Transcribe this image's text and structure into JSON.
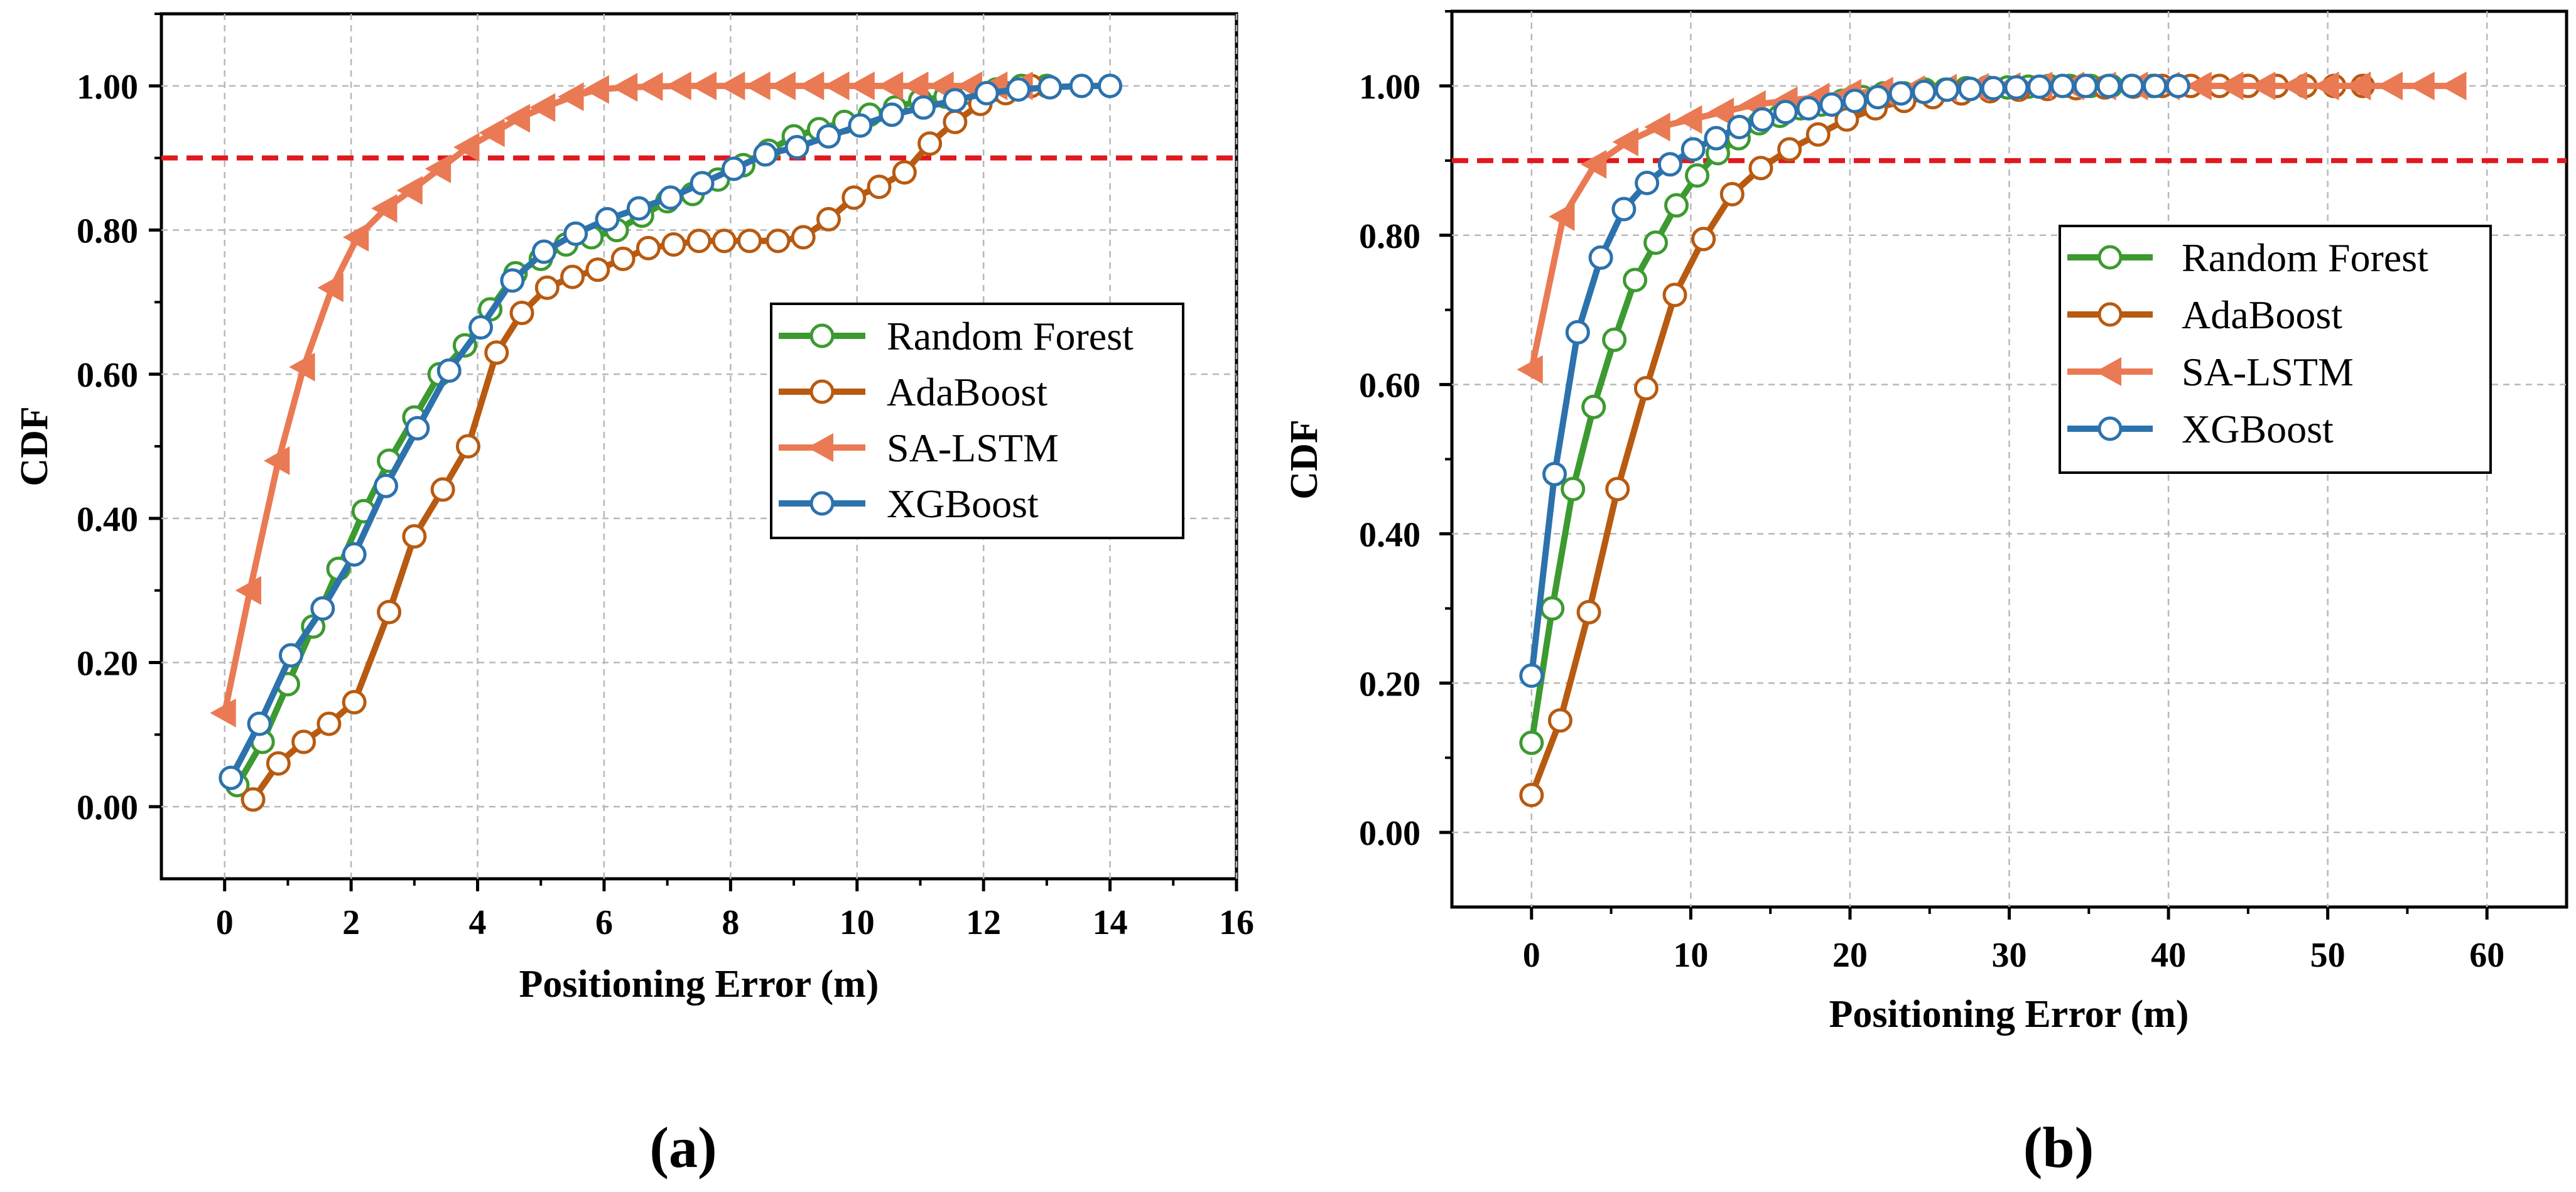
{
  "figure": {
    "panel_labels": [
      "(a)",
      "(b)"
    ]
  },
  "chart_data": [
    {
      "type": "line",
      "panel": "(a)",
      "title": "",
      "xlabel": "Positioning Error (m)",
      "ylabel": "CDF",
      "xlim": [
        -1,
        16
      ],
      "ylim": [
        -0.1,
        1.1
      ],
      "xticks": [
        0,
        2,
        4,
        6,
        8,
        10,
        12,
        14,
        16
      ],
      "yticks": [
        0.0,
        0.2,
        0.4,
        0.6,
        0.8,
        1.0
      ],
      "ytick_labels": [
        "0.00",
        "0.20",
        "0.40",
        "0.60",
        "0.80",
        "1.00"
      ],
      "grid": true,
      "legend_position": "center-right",
      "reference_line": {
        "y": 0.9,
        "color": "#e0191f",
        "style": "dashed"
      },
      "series": [
        {
          "name": "Random Forest",
          "color": "#3c9a30",
          "marker": "circle",
          "x": [
            0.2,
            0.6,
            1.0,
            1.4,
            1.8,
            2.2,
            2.6,
            3.0,
            3.4,
            3.8,
            4.2,
            4.6,
            5.0,
            5.4,
            5.8,
            6.2,
            6.6,
            7.0,
            7.4,
            7.8,
            8.2,
            8.6,
            9.0,
            9.4,
            9.8,
            10.2,
            10.6,
            11.0,
            11.4,
            11.8,
            12.2,
            12.6,
            13.0
          ],
          "y": [
            0.03,
            0.09,
            0.17,
            0.25,
            0.33,
            0.41,
            0.48,
            0.54,
            0.6,
            0.64,
            0.69,
            0.74,
            0.76,
            0.78,
            0.79,
            0.8,
            0.82,
            0.84,
            0.85,
            0.87,
            0.89,
            0.91,
            0.93,
            0.94,
            0.95,
            0.96,
            0.97,
            0.98,
            0.985,
            0.99,
            0.995,
            1.0,
            1.0
          ]
        },
        {
          "name": "AdaBoost",
          "color": "#b85a10",
          "marker": "circle",
          "x": [
            0.45,
            0.85,
            1.25,
            1.65,
            2.05,
            2.6,
            3.0,
            3.45,
            3.85,
            4.3,
            4.7,
            5.1,
            5.5,
            5.9,
            6.3,
            6.7,
            7.1,
            7.5,
            7.9,
            8.3,
            8.75,
            9.15,
            9.55,
            9.95,
            10.35,
            10.75,
            11.15,
            11.55,
            11.95,
            12.35,
            12.75
          ],
          "y": [
            0.01,
            0.06,
            0.09,
            0.115,
            0.145,
            0.27,
            0.375,
            0.44,
            0.5,
            0.63,
            0.685,
            0.72,
            0.735,
            0.745,
            0.76,
            0.775,
            0.78,
            0.785,
            0.785,
            0.785,
            0.785,
            0.79,
            0.815,
            0.845,
            0.86,
            0.88,
            0.92,
            0.95,
            0.975,
            0.99,
            1.0
          ]
        },
        {
          "name": "SA-LSTM",
          "color": "#ea7a53",
          "marker": "triangle-left",
          "x": [
            0.0,
            0.4,
            0.85,
            1.25,
            1.7,
            2.1,
            2.55,
            2.95,
            3.4,
            3.85,
            4.25,
            4.65,
            5.05,
            5.5,
            5.9,
            6.35,
            6.75,
            7.2,
            7.6,
            8.05,
            8.45,
            8.85,
            9.3,
            9.7,
            10.1,
            10.55,
            10.95,
            11.35,
            11.8,
            12.2,
            12.6
          ],
          "y": [
            0.13,
            0.3,
            0.48,
            0.61,
            0.72,
            0.79,
            0.83,
            0.855,
            0.885,
            0.915,
            0.935,
            0.955,
            0.97,
            0.985,
            0.995,
            0.998,
            0.999,
            1.0,
            1.0,
            1.0,
            1.0,
            1.0,
            1.0,
            1.0,
            1.0,
            1.0,
            1.0,
            1.0,
            1.0,
            1.0,
            1.0
          ]
        },
        {
          "name": "XGBoost",
          "color": "#2c72ad",
          "marker": "circle",
          "x": [
            0.1,
            0.55,
            1.05,
            1.55,
            2.05,
            2.55,
            3.05,
            3.55,
            4.05,
            4.55,
            5.05,
            5.55,
            6.05,
            6.55,
            7.05,
            7.55,
            8.05,
            8.55,
            9.05,
            9.55,
            10.05,
            10.55,
            11.05,
            11.55,
            12.05,
            12.55,
            13.05,
            13.55,
            14.0
          ],
          "y": [
            0.04,
            0.115,
            0.21,
            0.275,
            0.35,
            0.445,
            0.525,
            0.605,
            0.665,
            0.73,
            0.77,
            0.795,
            0.815,
            0.83,
            0.845,
            0.865,
            0.885,
            0.905,
            0.915,
            0.93,
            0.945,
            0.96,
            0.97,
            0.98,
            0.99,
            0.995,
            0.998,
            1.0,
            1.0
          ]
        }
      ]
    },
    {
      "type": "line",
      "panel": "(b)",
      "title": "",
      "xlabel": "Positioning Error (m)",
      "ylabel": "CDF",
      "xlim": [
        -5,
        65
      ],
      "ylim": [
        -0.1,
        1.1
      ],
      "xticks": [
        0,
        10,
        20,
        30,
        40,
        50,
        60
      ],
      "yticks": [
        0.0,
        0.2,
        0.4,
        0.6,
        0.8,
        1.0
      ],
      "ytick_labels": [
        "0.00",
        "0.20",
        "0.40",
        "0.60",
        "0.80",
        "1.00"
      ],
      "grid": true,
      "legend_position": "center-right",
      "reference_line": {
        "y": 0.9,
        "color": "#e0191f",
        "style": "dashed"
      },
      "series": [
        {
          "name": "Random Forest",
          "color": "#3c9a30",
          "marker": "circle",
          "x": [
            0.0,
            1.3,
            2.6,
            3.9,
            5.2,
            6.5,
            7.8,
            9.1,
            10.4,
            11.7,
            13.0,
            14.3,
            15.6,
            16.9,
            18.2,
            19.5,
            20.8,
            22.1,
            23.4,
            24.7,
            26.0,
            27.3,
            28.6,
            29.9,
            31.2,
            32.5,
            33.8,
            35.1,
            36.4,
            37.7,
            39.0
          ],
          "y": [
            0.12,
            0.3,
            0.46,
            0.57,
            0.66,
            0.74,
            0.79,
            0.84,
            0.88,
            0.91,
            0.93,
            0.95,
            0.96,
            0.97,
            0.975,
            0.98,
            0.985,
            0.99,
            0.99,
            0.995,
            0.995,
            0.997,
            0.998,
            0.998,
            0.999,
            1.0,
            1.0,
            1.0,
            1.0,
            1.0,
            1.0
          ]
        },
        {
          "name": "AdaBoost",
          "color": "#b85a10",
          "marker": "circle",
          "x": [
            0.0,
            1.8,
            3.6,
            5.4,
            7.2,
            9.0,
            10.8,
            12.6,
            14.4,
            16.2,
            18.0,
            19.8,
            21.6,
            23.4,
            25.2,
            27.0,
            28.8,
            30.6,
            32.4,
            34.2,
            36.0,
            37.8,
            39.6,
            41.4,
            43.2,
            45.0,
            46.8,
            48.6,
            50.4,
            52.2
          ],
          "y": [
            0.05,
            0.15,
            0.295,
            0.46,
            0.595,
            0.72,
            0.795,
            0.855,
            0.89,
            0.915,
            0.935,
            0.955,
            0.97,
            0.98,
            0.985,
            0.99,
            0.993,
            0.995,
            0.996,
            0.997,
            0.998,
            0.999,
            1.0,
            1.0,
            1.0,
            1.0,
            1.0,
            1.0,
            1.0,
            1.0
          ]
        },
        {
          "name": "SA-LSTM",
          "color": "#ea7a53",
          "marker": "triangle-left",
          "x": [
            0.0,
            2.0,
            4.0,
            6.0,
            8.0,
            10.0,
            12.0,
            14.0,
            16.0,
            18.0,
            20.0,
            22.0,
            24.0,
            26.0,
            28.0,
            30.0,
            32.0,
            34.0,
            36.0,
            38.0,
            40.0,
            42.0,
            44.0,
            46.0,
            48.0,
            50.0,
            52.0,
            54.0,
            56.0,
            58.0
          ],
          "y": [
            0.62,
            0.825,
            0.895,
            0.925,
            0.945,
            0.955,
            0.965,
            0.975,
            0.98,
            0.985,
            0.99,
            0.993,
            0.995,
            0.997,
            0.998,
            0.999,
            1.0,
            1.0,
            1.0,
            1.0,
            1.0,
            1.0,
            1.0,
            1.0,
            1.0,
            1.0,
            1.0,
            1.0,
            1.0,
            1.0
          ]
        },
        {
          "name": "XGBoost",
          "color": "#2c72ad",
          "marker": "circle",
          "x": [
            0.0,
            1.45,
            2.9,
            4.35,
            5.8,
            7.25,
            8.7,
            10.15,
            11.6,
            13.05,
            14.5,
            15.95,
            17.4,
            18.85,
            20.3,
            21.75,
            23.2,
            24.65,
            26.1,
            27.55,
            29.0,
            30.45,
            31.9,
            33.35,
            34.8,
            36.25,
            37.7,
            39.15,
            40.6
          ],
          "y": [
            0.21,
            0.48,
            0.67,
            0.77,
            0.835,
            0.87,
            0.895,
            0.915,
            0.93,
            0.945,
            0.955,
            0.965,
            0.97,
            0.975,
            0.98,
            0.985,
            0.99,
            0.992,
            0.995,
            0.996,
            0.997,
            0.998,
            0.999,
            1.0,
            1.0,
            1.0,
            1.0,
            1.0,
            1.0
          ]
        }
      ]
    }
  ]
}
